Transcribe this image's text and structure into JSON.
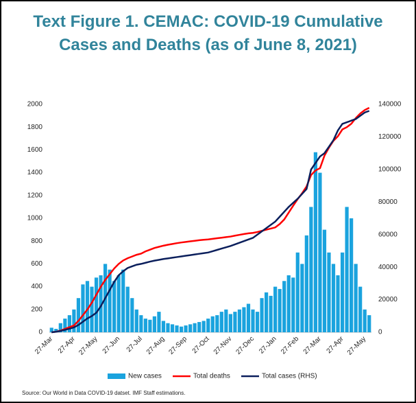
{
  "chart_data": {
    "type": "bar",
    "title": [
      "Text Figure 1. CEMAC: COVID-19 Cumulative",
      "Cases and Deaths (as of June 8, 2021)"
    ],
    "source": "Source: Our World in Data COVID-19 datset. IMF Staff estimations.",
    "categories": [
      "27-Mar",
      null,
      null,
      null,
      null,
      "27-Apr",
      null,
      null,
      null,
      null,
      "27-May",
      null,
      null,
      null,
      null,
      "27-Jun",
      null,
      null,
      null,
      null,
      "27-Jul",
      null,
      null,
      null,
      null,
      "27-Aug",
      null,
      null,
      null,
      null,
      "27-Sep",
      null,
      null,
      null,
      null,
      "27-Oct",
      null,
      null,
      null,
      null,
      "27-Nov",
      null,
      null,
      null,
      null,
      "27-Dec",
      null,
      null,
      null,
      null,
      "27-Jan",
      null,
      null,
      null,
      null,
      "27-Feb",
      null,
      null,
      null,
      null,
      "27-Mar",
      null,
      null,
      null,
      null,
      "27-Apr",
      null,
      null,
      null,
      null,
      "27-May",
      null
    ],
    "series": [
      {
        "name": "New cases",
        "type": "bar",
        "color": "#1aa3de",
        "values": [
          40,
          30,
          80,
          120,
          150,
          200,
          300,
          420,
          450,
          400,
          480,
          500,
          600,
          550,
          450,
          500,
          550,
          400,
          300,
          200,
          150,
          120,
          110,
          140,
          180,
          100,
          80,
          70,
          60,
          50,
          60,
          70,
          80,
          90,
          100,
          120,
          140,
          150,
          180,
          200,
          160,
          180,
          200,
          220,
          250,
          200,
          180,
          300,
          350,
          320,
          400,
          380,
          450,
          500,
          480,
          700,
          600,
          850,
          1100,
          1580,
          1400,
          900,
          700,
          600,
          500,
          700,
          1100,
          1000,
          600,
          400,
          200,
          150
        ]
      },
      {
        "name": "Total deaths",
        "type": "line",
        "color": "#ff0000",
        "values": [
          0,
          5,
          15,
          30,
          45,
          60,
          100,
          150,
          200,
          260,
          330,
          400,
          460,
          510,
          560,
          600,
          630,
          650,
          665,
          680,
          690,
          710,
          725,
          740,
          750,
          760,
          768,
          775,
          782,
          788,
          793,
          798,
          803,
          808,
          812,
          815,
          820,
          825,
          830,
          835,
          840,
          848,
          855,
          862,
          868,
          872,
          880,
          890,
          900,
          910,
          920,
          950,
          990,
          1050,
          1110,
          1168,
          1220,
          1280,
          1380,
          1420,
          1440,
          1550,
          1620,
          1680,
          1720,
          1780,
          1800,
          1830,
          1880,
          1920,
          1950,
          1970
        ]
      },
      {
        "name": "Total cases (RHS)",
        "type": "line",
        "axis": "y2",
        "color": "#0b1f5c",
        "values": [
          0,
          300,
          800,
          1500,
          2200,
          3000,
          4500,
          6500,
          8500,
          10000,
          12000,
          16000,
          21000,
          26000,
          31000,
          35000,
          37500,
          39500,
          40500,
          41500,
          42000,
          42700,
          43400,
          44000,
          44500,
          45000,
          45400,
          45800,
          46200,
          46600,
          47000,
          47400,
          47800,
          48200,
          48600,
          49000,
          49800,
          50600,
          51400,
          52200,
          53000,
          54000,
          55000,
          56000,
          57000,
          58000,
          60000,
          62000,
          64000,
          66000,
          68000,
          71000,
          74000,
          77000,
          79500,
          82000,
          85000,
          88000,
          100000,
          104000,
          108000,
          110000,
          114000,
          118000,
          124000,
          128000,
          129000,
          130000,
          131000,
          133000,
          135000,
          136000
        ]
      }
    ],
    "ylim": [
      0,
      2000
    ],
    "yticks": [
      0,
      200,
      400,
      600,
      800,
      1000,
      1200,
      1400,
      1600,
      1800,
      2000
    ],
    "y2lim": [
      0,
      140000
    ],
    "y2ticks": [
      0,
      20000,
      40000,
      60000,
      80000,
      100000,
      120000,
      140000
    ],
    "grid": false,
    "legend": "bottom"
  }
}
